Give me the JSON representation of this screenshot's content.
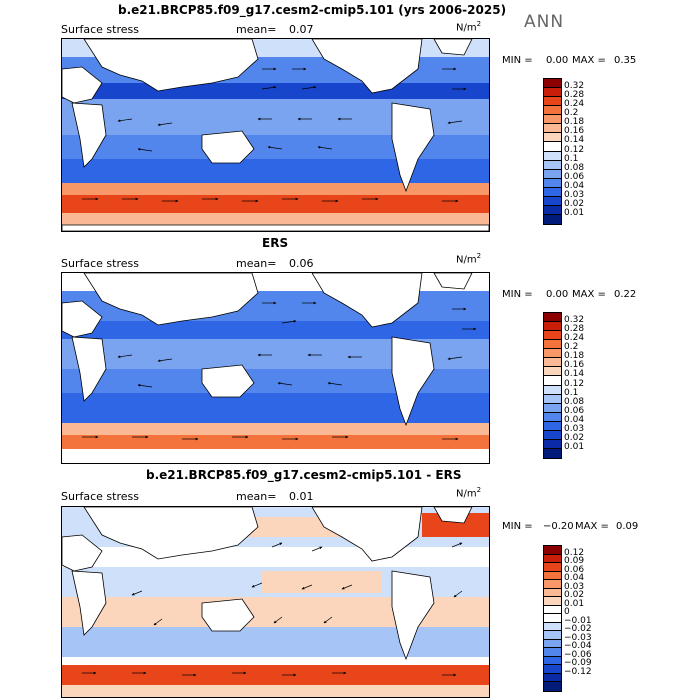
{
  "annotation": "ANN",
  "panels": [
    {
      "title": "b.e21.BRCP85.f09_g17.cesm2-cmip5.101 (yrs 2006-2025)",
      "field": "Surface stress",
      "mean_label": "mean=",
      "mean_value": "0.07",
      "unit_base": "N/m",
      "unit_exp": "2",
      "min_label": "MIN =",
      "min_value": "0.00",
      "max_label": "MAX =",
      "max_value": "0.35",
      "colorbar": {
        "colors": [
          "#8b0000",
          "#c81e0a",
          "#e8451a",
          "#f4733c",
          "#f89868",
          "#fab894",
          "#fcd6bc",
          "#ffffff",
          "#cfe0fb",
          "#a6c4f6",
          "#7aa4f0",
          "#5386ec",
          "#2f66e6",
          "#1745cc",
          "#0b2aa6",
          "#001b7a"
        ],
        "labels": [
          "0.32",
          "0.28",
          "0.24",
          "0.2",
          "0.18",
          "0.16",
          "0.14",
          "0.12",
          "0.1",
          "0.08",
          "0.06",
          "0.04",
          "0.03",
          "0.02",
          "0.01"
        ]
      }
    },
    {
      "title": "ERS",
      "field": "Surface stress",
      "mean_label": "mean=",
      "mean_value": "0.06",
      "unit_base": "N/m",
      "unit_exp": "2",
      "min_label": "MIN =",
      "min_value": "0.00",
      "max_label": "MAX =",
      "max_value": "0.22",
      "colorbar": {
        "colors": [
          "#8b0000",
          "#c81e0a",
          "#e8451a",
          "#f4733c",
          "#f89868",
          "#fab894",
          "#fcd6bc",
          "#ffffff",
          "#cfe0fb",
          "#a6c4f6",
          "#7aa4f0",
          "#5386ec",
          "#2f66e6",
          "#1745cc",
          "#0b2aa6",
          "#001b7a"
        ],
        "labels": [
          "0.32",
          "0.28",
          "0.24",
          "0.2",
          "0.18",
          "0.16",
          "0.14",
          "0.12",
          "0.1",
          "0.08",
          "0.06",
          "0.04",
          "0.03",
          "0.02",
          "0.01"
        ]
      }
    },
    {
      "title": "b.e21.BRCP85.f09_g17.cesm2-cmip5.101 - ERS",
      "field": "Surface stress",
      "mean_label": "mean=",
      "mean_value": "0.01",
      "unit_base": "N/m",
      "unit_exp": "2",
      "min_label": "MIN =",
      "min_value": "−0.20",
      "max_label": "MAX =",
      "max_value": "0.09",
      "colorbar": {
        "colors": [
          "#8b0000",
          "#c81e0a",
          "#e8451a",
          "#f4733c",
          "#f89868",
          "#fab894",
          "#fcd6bc",
          "#ffffff",
          "#ffffff",
          "#cfe0fb",
          "#a6c4f6",
          "#7aa4f0",
          "#5386ec",
          "#2f66e6",
          "#1745cc",
          "#0b2aa6",
          "#001b7a"
        ],
        "labels": [
          "0.12",
          "0.09",
          "0.06",
          "0.04",
          "0.03",
          "0.02",
          "0.01",
          "0",
          "−0.01",
          "−0.02",
          "−0.03",
          "−0.04",
          "−0.06",
          "−0.09",
          "−0.12"
        ]
      }
    }
  ]
}
